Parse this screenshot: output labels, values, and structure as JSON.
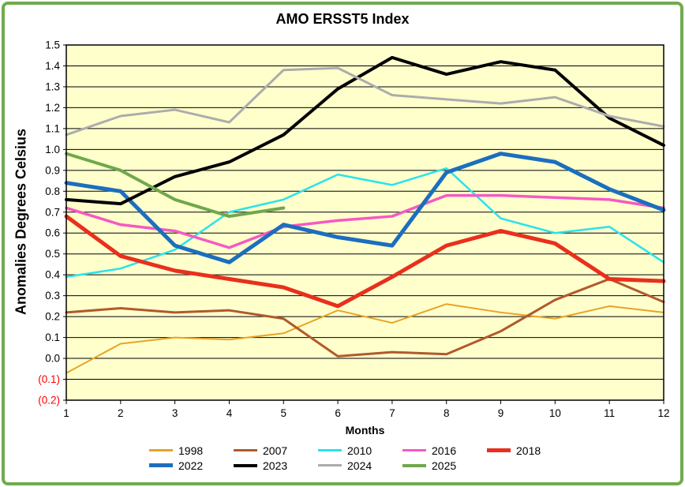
{
  "chart_data": {
    "type": "line",
    "title": "AMO ERSST5 Index",
    "xlabel": "Months",
    "ylabel": "Anomalies Degrees Celsius",
    "x": [
      1,
      2,
      3,
      4,
      5,
      6,
      7,
      8,
      9,
      10,
      11,
      12
    ],
    "xtick_labels": [
      "1",
      "2",
      "3",
      "4",
      "5",
      "6",
      "7",
      "8",
      "9",
      "10",
      "11",
      "12"
    ],
    "ylim": [
      -0.2,
      1.5
    ],
    "ytick_step": 0.1,
    "ytick_labels": [
      "1.5",
      "1.4",
      "1.3",
      "1.2",
      "1.1",
      "1.0",
      "0.9",
      "0.8",
      "0.7",
      "0.6",
      "0.5",
      "0.4",
      "0.3",
      "0.2",
      "0.1",
      "0.0",
      "(0.1)",
      "(0.2)"
    ],
    "negative_tick_color": "#FF0000",
    "tick_label_color": "#000000",
    "grid": true,
    "gridline_color": "#000000",
    "plot_bg": "#FFFFCC",
    "frame_color": "#72AB4E",
    "legend_position": "bottom",
    "series": [
      {
        "name": "1998",
        "color": "#E7A426",
        "width": 2,
        "values": [
          -0.07,
          0.07,
          0.1,
          0.09,
          0.12,
          0.23,
          0.17,
          0.26,
          0.22,
          0.19,
          0.25,
          0.22
        ]
      },
      {
        "name": "2007",
        "color": "#B05A2C",
        "width": 3,
        "values": [
          0.22,
          0.24,
          0.22,
          0.23,
          0.19,
          0.01,
          0.03,
          0.02,
          0.13,
          0.28,
          0.38,
          0.27
        ]
      },
      {
        "name": "2010",
        "color": "#2BE2EC",
        "width": 2.5,
        "values": [
          0.39,
          0.43,
          0.52,
          0.7,
          0.76,
          0.88,
          0.83,
          0.91,
          0.67,
          0.6,
          0.63,
          0.46
        ]
      },
      {
        "name": "2016",
        "color": "#F659C3",
        "width": 3.5,
        "values": [
          0.72,
          0.64,
          0.61,
          0.53,
          0.63,
          0.66,
          0.68,
          0.78,
          0.78,
          0.77,
          0.76,
          0.72
        ]
      },
      {
        "name": "2018",
        "color": "#E8301C",
        "width": 5,
        "values": [
          0.68,
          0.49,
          0.42,
          0.38,
          0.34,
          0.25,
          0.39,
          0.54,
          0.61,
          0.55,
          0.38,
          0.37
        ]
      },
      {
        "name": "2022",
        "color": "#1C6EBE",
        "width": 5,
        "values": [
          0.84,
          0.8,
          0.54,
          0.46,
          0.64,
          0.58,
          0.54,
          0.89,
          0.98,
          0.94,
          0.81,
          0.71
        ]
      },
      {
        "name": "2023",
        "color": "#000000",
        "width": 4,
        "values": [
          0.76,
          0.74,
          0.87,
          0.94,
          1.07,
          1.29,
          1.44,
          1.36,
          1.42,
          1.38,
          1.15,
          1.02
        ]
      },
      {
        "name": "2024",
        "color": "#ACACAC",
        "width": 3,
        "values": [
          1.07,
          1.16,
          1.19,
          1.13,
          1.38,
          1.39,
          1.26,
          1.24,
          1.22,
          1.25,
          1.16,
          1.11
        ]
      },
      {
        "name": "2025",
        "color": "#6FA84C",
        "width": 4,
        "values": [
          0.98,
          0.9,
          0.76,
          0.68,
          0.72
        ]
      }
    ]
  }
}
